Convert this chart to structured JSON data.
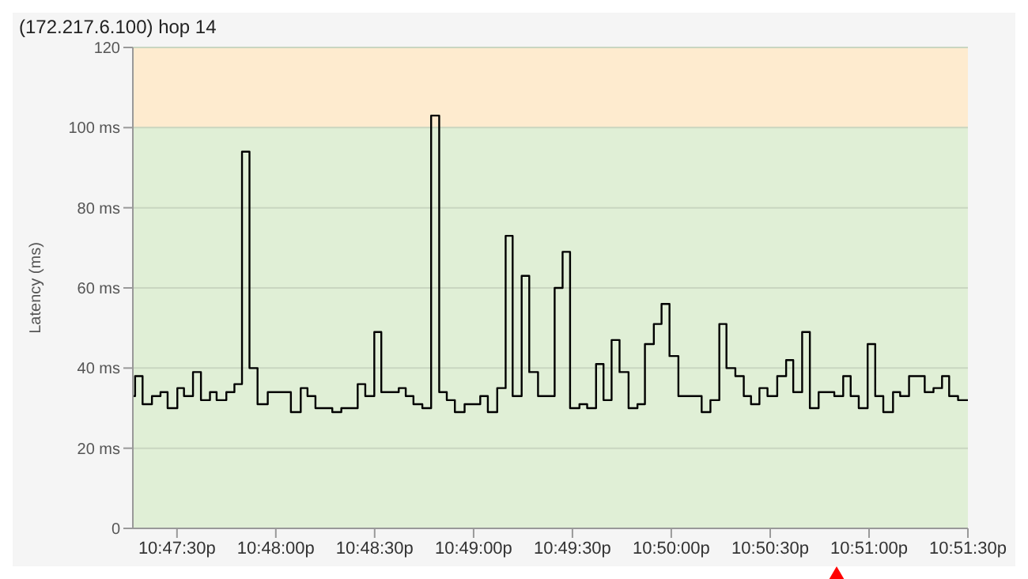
{
  "chart_data": {
    "type": "step",
    "title": "(172.217.6.100) hop 14",
    "ylabel": "Latency (ms)",
    "x": [
      22.78795,
      22.78814,
      22.78877,
      22.78956,
      22.79028,
      22.79088,
      22.7917,
      22.79226,
      22.79302,
      22.79369,
      22.79445,
      22.79501,
      22.79583,
      22.79651,
      22.79715,
      22.79778,
      22.79846,
      22.79932,
      22.80127,
      22.8021,
      22.80267,
      22.80334,
      22.80476,
      22.80552,
      22.8069,
      22.80754,
      22.8083,
      22.80889,
      22.81036,
      22.81095,
      22.8116,
      22.81235,
      22.81309,
      22.81377,
      22.81441,
      22.81509,
      22.81591,
      22.81723,
      22.81787,
      22.81866,
      22.81937,
      22.81996,
      22.82072,
      22.82136,
      22.8221,
      22.8235,
      22.82417,
      22.8248,
      22.82559,
      22.82624,
      22.82699,
      22.82762,
      22.8283,
      22.82897,
      22.82973,
      22.83048,
      22.83111,
      22.83186,
      22.83251,
      22.83318,
      22.83393,
      22.83589,
      22.83663,
      22.83738,
      22.83798,
      22.83873,
      22.83944,
      22.84005,
      22.84076,
      22.84144,
      22.84226,
      22.84301,
      22.84361,
      22.84436,
      22.84501,
      22.84575,
      22.84707,
      22.84782,
      22.84845,
      22.84913,
      22.84988,
      22.85052,
      22.8512,
      22.85202,
      22.85262,
      22.85337,
      22.85469,
      22.85543,
      22.85615,
      22.85675,
      22.8575,
      22.85833
    ],
    "values": [
      33,
      38,
      31,
      33,
      34,
      30,
      35,
      33,
      39,
      32,
      34,
      32,
      34,
      36,
      94,
      40,
      31,
      34,
      29,
      35,
      33,
      30,
      29,
      30,
      36,
      33,
      49,
      34,
      35,
      33,
      31,
      30,
      103,
      34,
      32,
      29,
      31,
      33,
      29,
      35,
      73,
      33,
      63,
      39,
      33,
      60,
      69,
      30,
      31,
      30,
      41,
      32,
      47,
      39,
      30,
      31,
      46,
      51,
      56,
      43,
      33,
      29,
      32,
      51,
      40,
      38,
      33,
      31,
      35,
      33,
      38,
      42,
      34,
      49,
      30,
      34,
      33,
      38,
      33,
      30,
      46,
      33,
      29,
      34,
      33,
      38,
      34,
      35,
      38,
      33,
      32,
      32
    ],
    "color": "#000000",
    "marker": "none",
    "line_style": "solid",
    "grid": "y",
    "xlim": [
      22.78795,
      22.85833
    ],
    "xticks": [
      {
        "value": 22.79167,
        "label": "10:47:30p"
      },
      {
        "value": 22.8,
        "label": "10:48:00p"
      },
      {
        "value": 22.80833,
        "label": "10:48:30p"
      },
      {
        "value": 22.81667,
        "label": "10:49:00p"
      },
      {
        "value": 22.825,
        "label": "10:49:30p"
      },
      {
        "value": 22.83333,
        "label": "10:50:00p"
      },
      {
        "value": 22.84167,
        "label": "10:50:30p"
      },
      {
        "value": 22.85,
        "label": "10:51:00p"
      },
      {
        "value": 22.85833,
        "label": "10:51:30p"
      }
    ],
    "ylim": [
      0,
      120
    ],
    "yticks": [
      {
        "value": 0,
        "label": "0"
      },
      {
        "value": 20,
        "label": "20 ms"
      },
      {
        "value": 40,
        "label": "40 ms"
      },
      {
        "value": 60,
        "label": "60 ms"
      },
      {
        "value": 80,
        "label": "80 ms"
      },
      {
        "value": 100,
        "label": "100 ms"
      },
      {
        "value": 120,
        "label": "120"
      }
    ],
    "bands": [
      {
        "axis": "y",
        "from": 0,
        "to": 100,
        "color": "#e0efd6"
      },
      {
        "axis": "y",
        "from": 100,
        "to": 120,
        "color": "#feebcf"
      }
    ]
  }
}
